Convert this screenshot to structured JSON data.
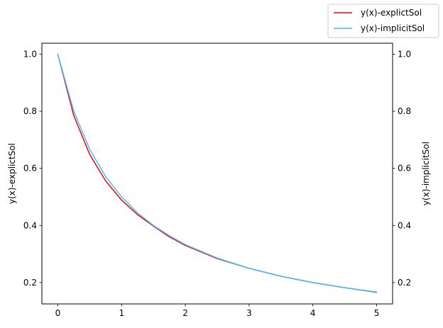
{
  "chart_data": {
    "type": "line",
    "title": "",
    "xlabel": "",
    "ylabel_left": "y(x)-explictSol",
    "ylabel_right": "y(x)-implicitSol",
    "xlim": [
      -0.25,
      5.25
    ],
    "ylim": [
      0.1253,
      1.0383
    ],
    "x_ticks": [
      0,
      1,
      2,
      3,
      4,
      5
    ],
    "y_ticks": [
      0.2,
      0.4,
      0.6,
      0.8,
      1.0
    ],
    "x_tick_labels": [
      "0",
      "1",
      "2",
      "3",
      "4",
      "5"
    ],
    "y_tick_labels": [
      "0.2",
      "0.4",
      "0.6",
      "0.8",
      "1.0"
    ],
    "grid": false,
    "legend_position": "top-right, outside axes",
    "series": [
      {
        "name": "y(x)-explictSol",
        "color": "#ff0000",
        "axis": "left",
        "x": [
          0,
          0.25,
          0.5,
          0.75,
          1,
          1.25,
          1.5,
          1.75,
          2,
          2.5,
          3,
          3.5,
          4,
          4.5,
          5
        ],
        "y": [
          1.0,
          0.785,
          0.649,
          0.556,
          0.489,
          0.438,
          0.398,
          0.36,
          0.33,
          0.284,
          0.25,
          0.222,
          0.2,
          0.182,
          0.166
        ]
      },
      {
        "name": "y(x)-implicitSol",
        "color": "#3fc3ff",
        "axis": "right",
        "x": [
          0,
          0.25,
          0.5,
          0.75,
          1,
          1.25,
          1.5,
          1.75,
          2,
          2.5,
          3,
          3.5,
          4,
          4.5,
          5
        ],
        "y": [
          1.0,
          0.8,
          0.667,
          0.571,
          0.5,
          0.444,
          0.4,
          0.364,
          0.333,
          0.286,
          0.25,
          0.222,
          0.2,
          0.182,
          0.167
        ]
      }
    ]
  }
}
